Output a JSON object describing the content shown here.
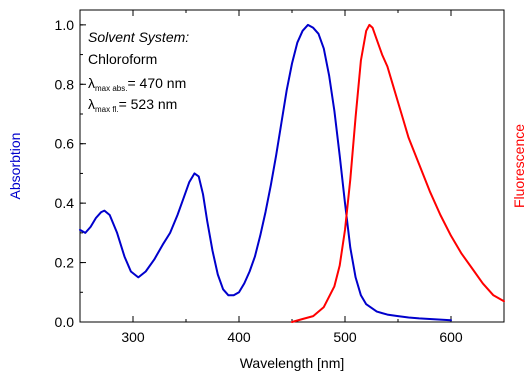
{
  "chart_data": {
    "type": "line",
    "xlabel": "Wavelength [nm]",
    "ylabel_left": "Absorbtion",
    "ylabel_right": "Fluorescence",
    "xlim": [
      250,
      650
    ],
    "ylim": [
      0.0,
      1.05
    ],
    "xticks": [
      300,
      400,
      500,
      600
    ],
    "yticks": [
      0.0,
      0.2,
      0.4,
      0.6,
      0.8,
      1.0
    ],
    "grid": false,
    "annotations": {
      "title": "Solvent System:",
      "solvent": "Chloroform",
      "abs_lambda": "λ",
      "abs_sub": "max abs.",
      "abs_value": "= 470 nm",
      "fl_lambda": "λ",
      "fl_sub": "max fl.",
      "fl_value": "= 523 nm"
    },
    "series": [
      {
        "color": "#0000cc",
        "x": [
          250,
          255,
          260,
          265,
          270,
          273,
          278,
          285,
          292,
          298,
          305,
          312,
          320,
          328,
          335,
          342,
          348,
          353,
          358,
          362,
          366,
          370,
          375,
          380,
          385,
          390,
          395,
          400,
          405,
          410,
          415,
          420,
          425,
          430,
          435,
          440,
          445,
          450,
          455,
          460,
          465,
          470,
          475,
          480,
          485,
          490,
          495,
          500,
          505,
          510,
          515,
          520,
          530,
          540,
          550,
          560,
          570,
          580,
          590,
          600
        ],
        "values": [
          0.31,
          0.3,
          0.32,
          0.35,
          0.37,
          0.375,
          0.36,
          0.3,
          0.22,
          0.17,
          0.15,
          0.17,
          0.21,
          0.26,
          0.3,
          0.36,
          0.42,
          0.47,
          0.5,
          0.49,
          0.43,
          0.34,
          0.24,
          0.16,
          0.11,
          0.09,
          0.09,
          0.1,
          0.13,
          0.17,
          0.22,
          0.29,
          0.37,
          0.46,
          0.56,
          0.67,
          0.78,
          0.87,
          0.94,
          0.98,
          1.0,
          0.99,
          0.97,
          0.92,
          0.83,
          0.71,
          0.56,
          0.4,
          0.25,
          0.15,
          0.09,
          0.06,
          0.035,
          0.025,
          0.02,
          0.015,
          0.012,
          0.01,
          0.008,
          0.006
        ]
      },
      {
        "color": "#ff0000",
        "x": [
          450,
          460,
          470,
          480,
          490,
          495,
          500,
          505,
          510,
          515,
          520,
          523,
          526,
          530,
          535,
          540,
          545,
          550,
          555,
          560,
          570,
          580,
          590,
          600,
          610,
          620,
          630,
          640,
          650
        ],
        "values": [
          0.0,
          0.01,
          0.02,
          0.05,
          0.12,
          0.19,
          0.31,
          0.48,
          0.69,
          0.88,
          0.98,
          1.0,
          0.99,
          0.95,
          0.9,
          0.86,
          0.8,
          0.74,
          0.68,
          0.62,
          0.53,
          0.44,
          0.36,
          0.29,
          0.23,
          0.18,
          0.13,
          0.09,
          0.07
        ]
      }
    ]
  }
}
